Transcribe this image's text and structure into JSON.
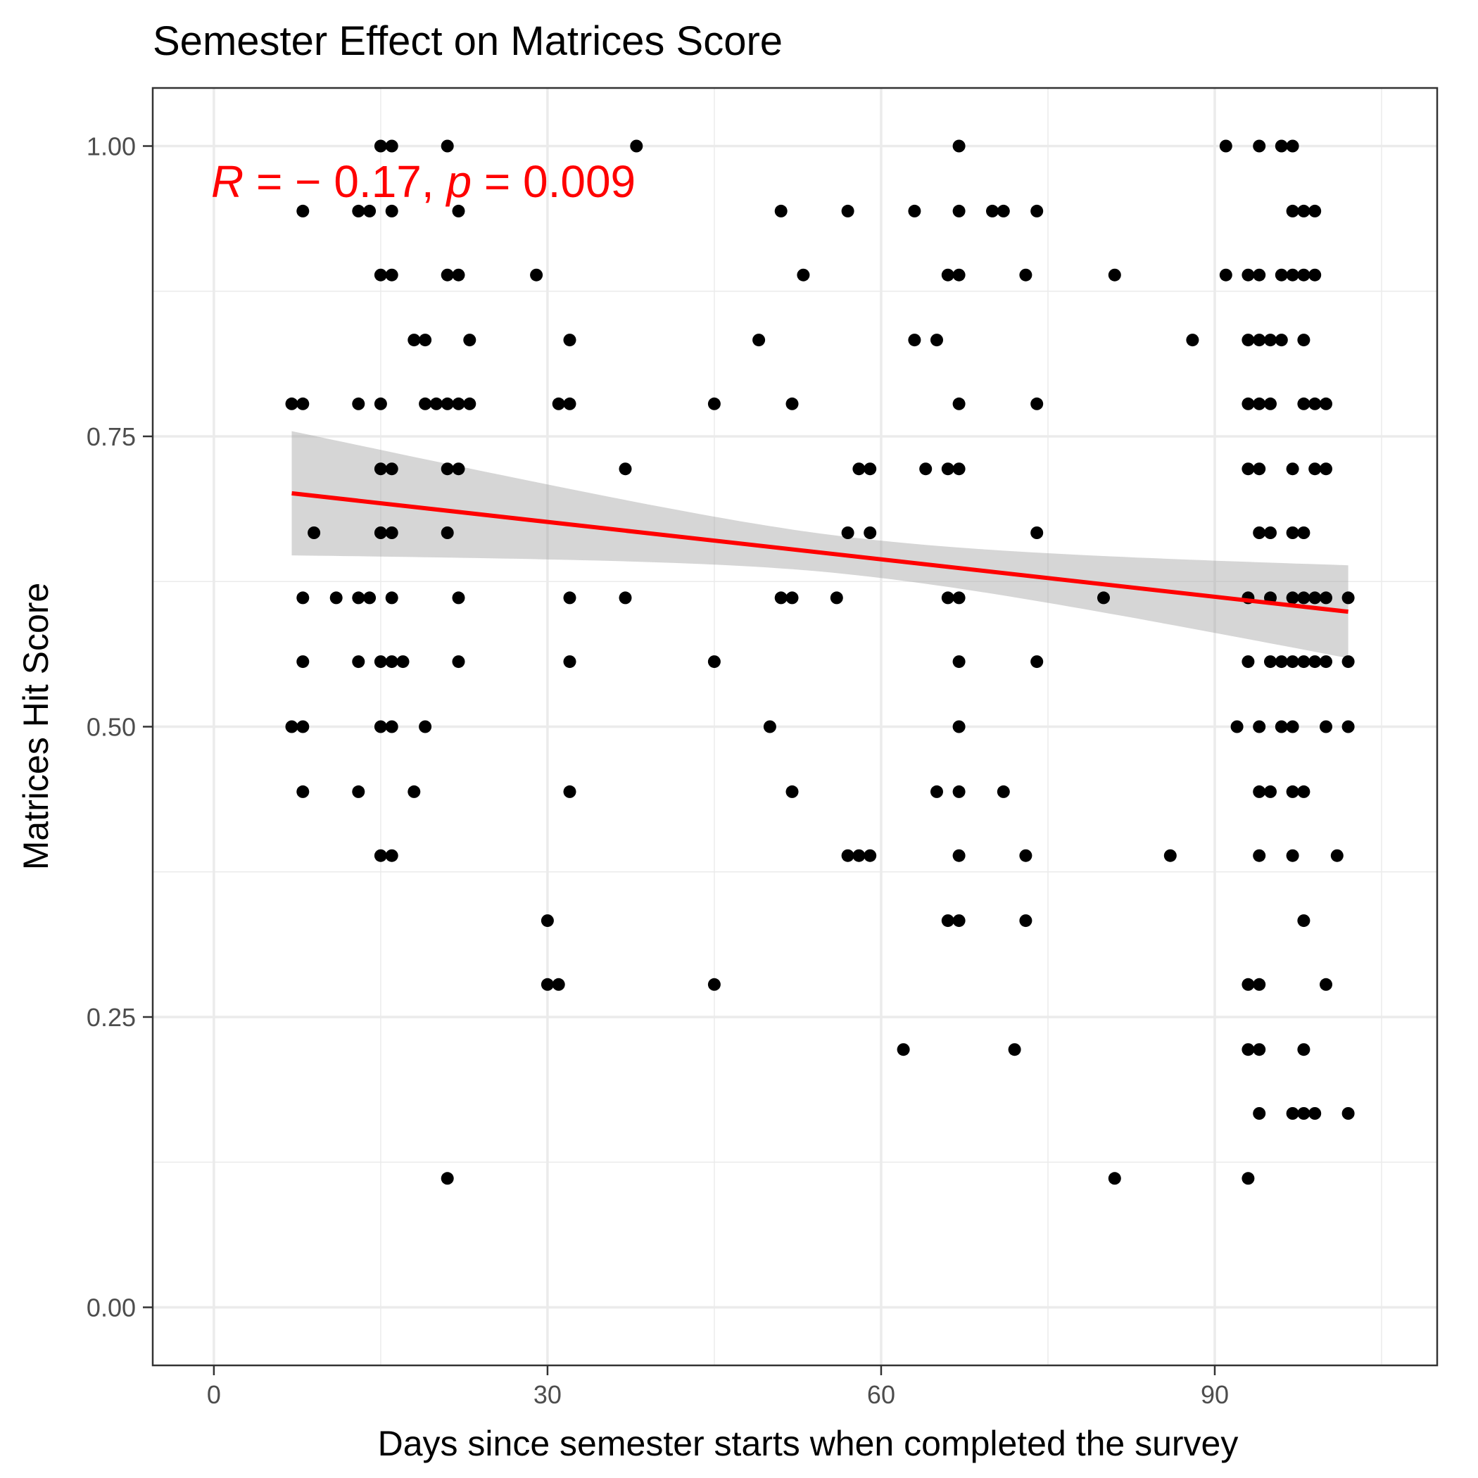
{
  "chart_data": {
    "type": "scatter",
    "title": "Semester Effect on Matrices Score",
    "xlabel": "Days since semester starts when completed the survey",
    "ylabel": "Matrices Hit Score",
    "xlim": [
      -5.5,
      110
    ],
    "ylim": [
      -0.05,
      1.05
    ],
    "x_ticks": [
      0,
      30,
      60,
      90
    ],
    "x_tick_labels": [
      "0",
      "30",
      "60",
      "90"
    ],
    "y_ticks": [
      0,
      0.25,
      0.5,
      0.75,
      1.0
    ],
    "y_tick_labels": [
      "0.00",
      "0.25",
      "0.50",
      "0.75",
      "1.00"
    ],
    "grid": true,
    "colors": {
      "points": "#000000",
      "fit_line": "#ff0000",
      "confidence_band": "#999999",
      "grid": "#ebebeb",
      "panel_border": "#333333",
      "annotation": "#ff0000"
    },
    "annotation": {
      "r_symbol": "R",
      "r_value": " = − 0.17, ",
      "p_symbol": "p",
      "p_value": " = 0.009"
    },
    "fit": {
      "x": [
        7,
        102
      ],
      "y": [
        0.701,
        0.599
      ],
      "ci_lower": [
        0.648,
        0.558
      ],
      "ci_upper": [
        0.755,
        0.638
      ]
    },
    "points": [
      [
        7,
        0.778
      ],
      [
        8,
        0.778
      ],
      [
        8,
        0.944
      ],
      [
        8,
        0.611
      ],
      [
        8,
        0.556
      ],
      [
        7,
        0.5
      ],
      [
        8,
        0.5
      ],
      [
        8,
        0.444
      ],
      [
        9,
        0.667
      ],
      [
        11,
        0.611
      ],
      [
        13,
        0.611
      ],
      [
        14,
        0.611
      ],
      [
        13,
        0.556
      ],
      [
        13,
        0.778
      ],
      [
        13,
        0.944
      ],
      [
        14,
        0.944
      ],
      [
        13,
        0.444
      ],
      [
        15,
        1.0
      ],
      [
        16,
        1.0
      ],
      [
        16,
        0.944
      ],
      [
        15,
        0.889
      ],
      [
        16,
        0.889
      ],
      [
        15,
        0.778
      ],
      [
        15,
        0.722
      ],
      [
        16,
        0.722
      ],
      [
        15,
        0.667
      ],
      [
        16,
        0.667
      ],
      [
        16,
        0.611
      ],
      [
        15,
        0.556
      ],
      [
        16,
        0.556
      ],
      [
        17,
        0.556
      ],
      [
        15,
        0.5
      ],
      [
        16,
        0.5
      ],
      [
        15,
        0.389
      ],
      [
        16,
        0.389
      ],
      [
        18,
        0.833
      ],
      [
        19,
        0.833
      ],
      [
        19,
        0.778
      ],
      [
        20,
        0.778
      ],
      [
        18,
        0.444
      ],
      [
        19,
        0.5
      ],
      [
        21,
        1.0
      ],
      [
        22,
        0.944
      ],
      [
        21,
        0.889
      ],
      [
        22,
        0.889
      ],
      [
        21,
        0.778
      ],
      [
        22,
        0.778
      ],
      [
        23,
        0.778
      ],
      [
        23,
        0.833
      ],
      [
        21,
        0.722
      ],
      [
        22,
        0.722
      ],
      [
        21,
        0.667
      ],
      [
        22,
        0.611
      ],
      [
        22,
        0.556
      ],
      [
        21,
        0.111
      ],
      [
        29,
        0.889
      ],
      [
        30,
        0.333
      ],
      [
        30,
        0.278
      ],
      [
        31,
        0.278
      ],
      [
        31,
        0.778
      ],
      [
        32,
        0.778
      ],
      [
        32,
        0.833
      ],
      [
        32,
        0.611
      ],
      [
        32,
        0.556
      ],
      [
        32,
        0.444
      ],
      [
        37,
        0.722
      ],
      [
        37,
        0.611
      ],
      [
        38,
        1.0
      ],
      [
        45,
        0.778
      ],
      [
        45,
        0.556
      ],
      [
        45,
        0.278
      ],
      [
        49,
        0.833
      ],
      [
        50,
        0.5
      ],
      [
        51,
        0.944
      ],
      [
        51,
        0.611
      ],
      [
        52,
        0.611
      ],
      [
        52,
        0.778
      ],
      [
        52,
        0.444
      ],
      [
        53,
        0.889
      ],
      [
        56,
        0.611
      ],
      [
        57,
        0.944
      ],
      [
        57,
        0.667
      ],
      [
        57,
        0.389
      ],
      [
        58,
        0.389
      ],
      [
        59,
        0.389
      ],
      [
        58,
        0.722
      ],
      [
        59,
        0.722
      ],
      [
        59,
        0.667
      ],
      [
        62,
        0.222
      ],
      [
        63,
        0.944
      ],
      [
        63,
        0.833
      ],
      [
        64,
        0.722
      ],
      [
        65,
        0.833
      ],
      [
        65,
        0.444
      ],
      [
        66,
        0.889
      ],
      [
        66,
        0.722
      ],
      [
        66,
        0.611
      ],
      [
        66,
        0.333
      ],
      [
        67,
        1.0
      ],
      [
        67,
        0.944
      ],
      [
        67,
        0.889
      ],
      [
        67,
        0.778
      ],
      [
        67,
        0.722
      ],
      [
        67,
        0.611
      ],
      [
        67,
        0.556
      ],
      [
        67,
        0.5
      ],
      [
        67,
        0.444
      ],
      [
        67,
        0.389
      ],
      [
        67,
        0.333
      ],
      [
        70,
        0.944
      ],
      [
        71,
        0.944
      ],
      [
        71,
        0.444
      ],
      [
        72,
        0.222
      ],
      [
        73,
        0.889
      ],
      [
        73,
        0.389
      ],
      [
        73,
        0.333
      ],
      [
        74,
        0.944
      ],
      [
        74,
        0.778
      ],
      [
        74,
        0.667
      ],
      [
        74,
        0.556
      ],
      [
        80,
        0.611
      ],
      [
        81,
        0.889
      ],
      [
        81,
        0.111
      ],
      [
        86,
        0.389
      ],
      [
        88,
        0.833
      ],
      [
        91,
        1.0
      ],
      [
        91,
        0.889
      ],
      [
        92,
        0.5
      ],
      [
        93,
        0.889
      ],
      [
        93,
        0.833
      ],
      [
        93,
        0.778
      ],
      [
        93,
        0.722
      ],
      [
        93,
        0.611
      ],
      [
        93,
        0.556
      ],
      [
        93,
        0.278
      ],
      [
        93,
        0.222
      ],
      [
        93,
        0.111
      ],
      [
        94,
        1.0
      ],
      [
        94,
        0.889
      ],
      [
        94,
        0.833
      ],
      [
        94,
        0.778
      ],
      [
        94,
        0.722
      ],
      [
        94,
        0.667
      ],
      [
        94,
        0.5
      ],
      [
        94,
        0.444
      ],
      [
        94,
        0.389
      ],
      [
        94,
        0.278
      ],
      [
        94,
        0.222
      ],
      [
        94,
        0.167
      ],
      [
        95,
        0.833
      ],
      [
        95,
        0.778
      ],
      [
        95,
        0.667
      ],
      [
        95,
        0.611
      ],
      [
        95,
        0.556
      ],
      [
        95,
        0.444
      ],
      [
        96,
        1.0
      ],
      [
        96,
        0.889
      ],
      [
        96,
        0.833
      ],
      [
        96,
        0.556
      ],
      [
        96,
        0.5
      ],
      [
        97,
        1.0
      ],
      [
        97,
        0.944
      ],
      [
        97,
        0.889
      ],
      [
        97,
        0.722
      ],
      [
        97,
        0.667
      ],
      [
        97,
        0.611
      ],
      [
        97,
        0.556
      ],
      [
        97,
        0.5
      ],
      [
        97,
        0.444
      ],
      [
        97,
        0.389
      ],
      [
        97,
        0.167
      ],
      [
        98,
        0.944
      ],
      [
        98,
        0.889
      ],
      [
        98,
        0.833
      ],
      [
        98,
        0.778
      ],
      [
        98,
        0.667
      ],
      [
        98,
        0.611
      ],
      [
        98,
        0.556
      ],
      [
        98,
        0.444
      ],
      [
        98,
        0.333
      ],
      [
        98,
        0.222
      ],
      [
        98,
        0.167
      ],
      [
        99,
        0.944
      ],
      [
        99,
        0.889
      ],
      [
        99,
        0.778
      ],
      [
        99,
        0.722
      ],
      [
        99,
        0.611
      ],
      [
        99,
        0.556
      ],
      [
        99,
        0.167
      ],
      [
        100,
        0.778
      ],
      [
        100,
        0.722
      ],
      [
        100,
        0.611
      ],
      [
        100,
        0.556
      ],
      [
        100,
        0.5
      ],
      [
        100,
        0.278
      ],
      [
        101,
        0.389
      ],
      [
        102,
        0.611
      ],
      [
        102,
        0.556
      ],
      [
        102,
        0.5
      ],
      [
        102,
        0.167
      ]
    ]
  }
}
